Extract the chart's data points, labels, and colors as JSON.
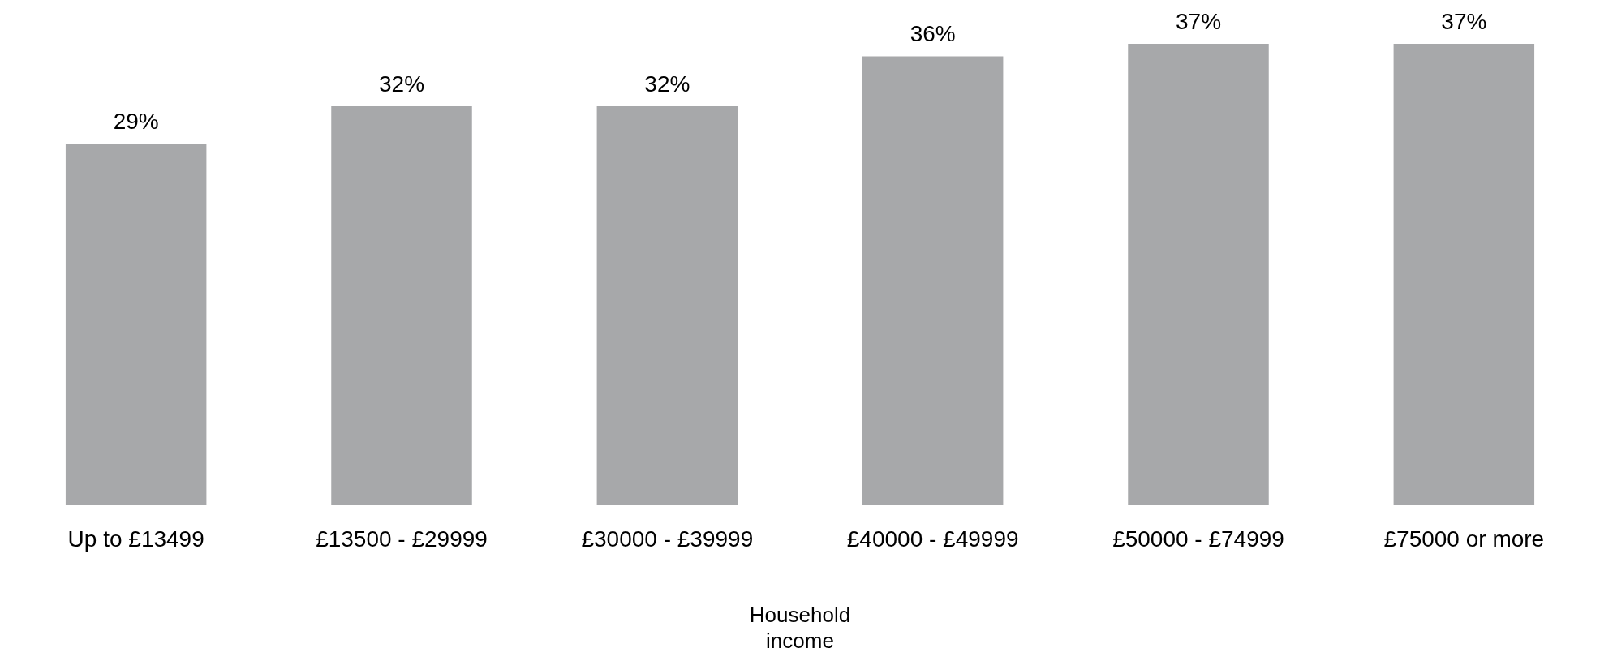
{
  "chart_data": {
    "type": "bar",
    "xlabel": "Household income",
    "categories": [
      "Up to £13499",
      "£13500 - £29999",
      "£30000 - £39999",
      "£40000 - £49999",
      "£50000 - £74999",
      "£75000 or more"
    ],
    "values": [
      29,
      32,
      32,
      36,
      37,
      37
    ],
    "value_labels": [
      "29%",
      "32%",
      "32%",
      "36%",
      "37%",
      "37%"
    ],
    "color": "#a7a8aa",
    "grid": false,
    "legend": false
  }
}
